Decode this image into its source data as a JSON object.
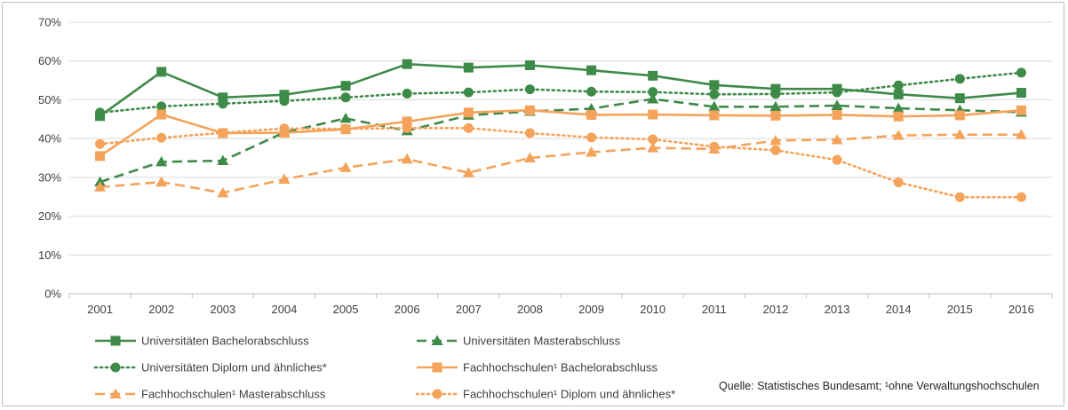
{
  "chart_data": {
    "type": "line",
    "title": "",
    "xlabel": "",
    "ylabel": "",
    "categories": [
      "2001",
      "2002",
      "2003",
      "2004",
      "2005",
      "2006",
      "2007",
      "2008",
      "2009",
      "2010",
      "2011",
      "2012",
      "2013",
      "2014",
      "2015",
      "2016"
    ],
    "ylim": [
      0,
      70
    ],
    "yticks": [
      "0%",
      "10%",
      "20%",
      "30%",
      "40%",
      "50%",
      "60%",
      "70%"
    ],
    "grid": "horizontal",
    "legend_position": "bottom",
    "series": [
      {
        "name": "Universitäten Bachelorabschluss",
        "color": "#3e8a48",
        "line": "solid",
        "marker": "square",
        "values": [
          45.8,
          57.2,
          50.6,
          51.3,
          53.6,
          59.2,
          58.3,
          58.9,
          57.6,
          56.2,
          53.8,
          52.8,
          52.8,
          51.4,
          50.4,
          51.8
        ]
      },
      {
        "name": "Universitäten Masterabschluss",
        "color": "#3e8a48",
        "line": "dashed",
        "marker": "triangle",
        "values": [
          28.8,
          34.0,
          34.3,
          41.6,
          45.2,
          42.0,
          46.0,
          47.0,
          47.7,
          50.2,
          48.2,
          48.2,
          48.5,
          47.8,
          47.3,
          46.8
        ]
      },
      {
        "name": "Universitäten Diplom und ähnliches*",
        "color": "#3e8a48",
        "line": "dotted",
        "marker": "circle",
        "values": [
          46.7,
          48.3,
          49.0,
          49.7,
          50.6,
          51.6,
          51.9,
          52.7,
          52.1,
          52.0,
          51.4,
          51.5,
          51.9,
          53.7,
          55.4,
          57.0
        ]
      },
      {
        "name": "Fachhochschulen¹ Bachelorabschluss",
        "color": "#f5a35a",
        "line": "solid",
        "marker": "square",
        "values": [
          35.5,
          46.2,
          41.4,
          41.5,
          42.4,
          44.4,
          46.7,
          47.3,
          46.1,
          46.2,
          46.0,
          45.9,
          46.1,
          45.7,
          46.0,
          47.3
        ]
      },
      {
        "name": "Fachhochschulen¹ Masterabschluss",
        "color": "#f5a35a",
        "line": "dashed",
        "marker": "triangle",
        "values": [
          27.5,
          28.8,
          26.0,
          29.5,
          32.5,
          34.7,
          31.2,
          35.0,
          36.5,
          37.6,
          37.3,
          39.5,
          39.7,
          40.8,
          41.0,
          41.0
        ]
      },
      {
        "name": "Fachhochschulen¹ Diplom und ähnliches*",
        "color": "#f5a35a",
        "line": "dotted",
        "marker": "circle",
        "values": [
          38.6,
          40.2,
          41.5,
          42.6,
          42.5,
          42.7,
          42.7,
          41.4,
          40.3,
          39.8,
          37.9,
          37.0,
          34.5,
          28.7,
          24.9,
          24.9
        ]
      }
    ],
    "annotation": "Quelle: Statistisches Bundesamt; ¹ohne Verwaltungshochschulen"
  }
}
